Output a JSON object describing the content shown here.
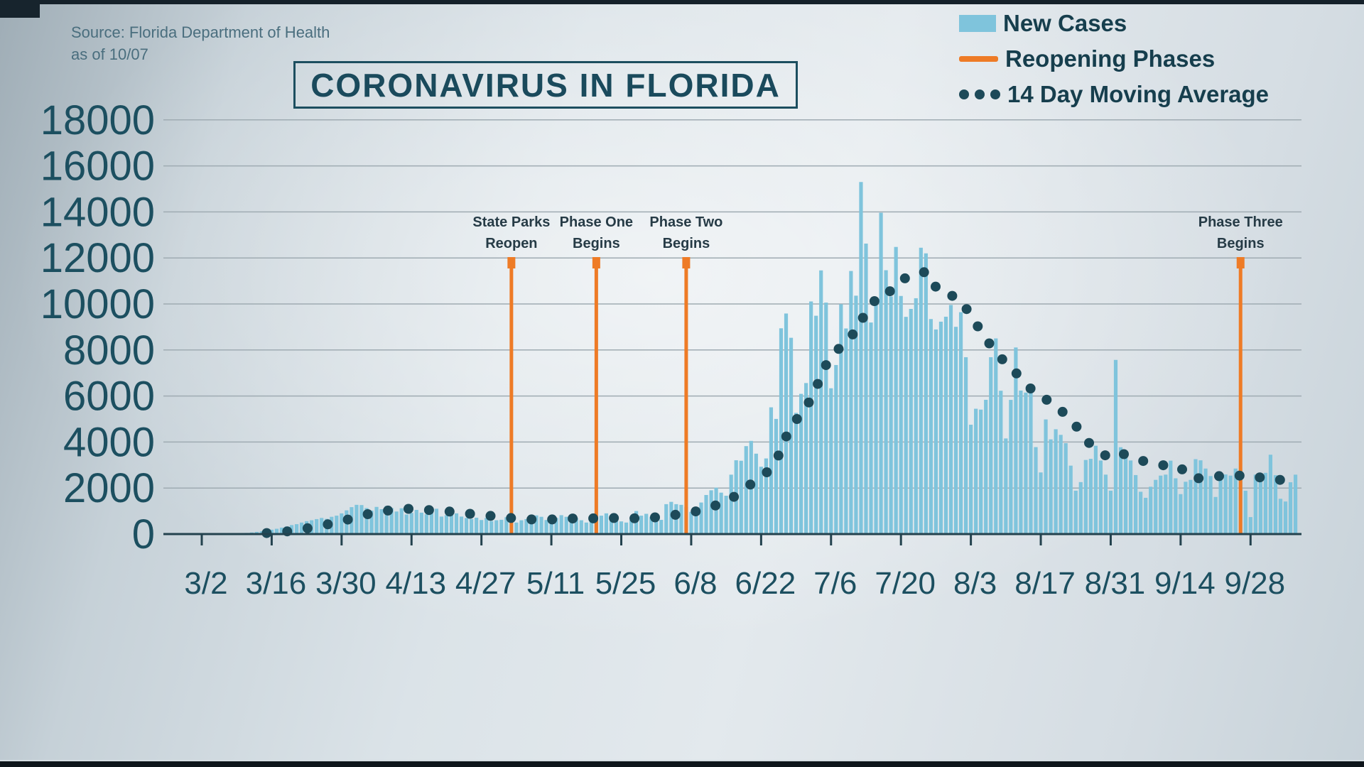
{
  "source_note": {
    "line1": "Source: Florida Department of Health",
    "line2": "as of 10/07"
  },
  "title": "CORONAVIRUS IN FLORIDA",
  "legend": {
    "items": [
      {
        "label": "New Cases",
        "swatch": "blue-bar"
      },
      {
        "label": "Reopening Phases",
        "swatch": "orange-line"
      },
      {
        "label": "14 Day Moving Average",
        "swatch": "dark-dots"
      }
    ]
  },
  "colors": {
    "bar": "#7fc4dc",
    "phase_line": "#ee7b26",
    "moving_avg": "#1d4a59",
    "axis_text": "#1c4f60",
    "grid_line": "#9fabb2",
    "axis_line": "#23424e",
    "title_text": "#1a4a5c",
    "annotation_text": "#263b46",
    "source_text": "#4a6e7e",
    "legend_text": "#163e4d"
  },
  "chart_data": {
    "type": "bar",
    "title": "CORONAVIRUS IN FLORIDA",
    "x_start_date": "3/2",
    "x_end_date": "10/7",
    "x_tick_labels": [
      "3/2",
      "3/16",
      "3/30",
      "4/13",
      "4/27",
      "5/11",
      "5/25",
      "6/8",
      "6/22",
      "7/6",
      "7/20",
      "8/3",
      "8/17",
      "8/31",
      "9/14",
      "9/28"
    ],
    "x_tick_day_indices": [
      0,
      14,
      28,
      42,
      56,
      70,
      84,
      98,
      112,
      126,
      140,
      154,
      168,
      182,
      196,
      210
    ],
    "ylim": [
      0,
      18000
    ],
    "y_ticks": [
      0,
      2000,
      4000,
      6000,
      8000,
      10000,
      12000,
      14000,
      16000,
      18000
    ],
    "grid": true,
    "legend_position": "top-right",
    "series": [
      {
        "name": "New Cases",
        "type": "bar",
        "values": [
          2,
          3,
          4,
          6,
          9,
          12,
          18,
          24,
          35,
          50,
          70,
          95,
          120,
          150,
          190,
          230,
          280,
          330,
          390,
          430,
          500,
          560,
          600,
          650,
          700,
          660,
          750,
          800,
          900,
          1030,
          1170,
          1270,
          1260,
          1130,
          1020,
          1180,
          1080,
          1220,
          1130,
          980,
          1120,
          850,
          920,
          1050,
          930,
          860,
          1000,
          1100,
          760,
          820,
          860,
          900,
          760,
          700,
          650,
          710,
          610,
          700,
          560,
          600,
          620,
          730,
          550,
          500,
          600,
          650,
          700,
          810,
          750,
          610,
          500,
          700,
          820,
          750,
          800,
          700,
          600,
          500,
          610,
          720,
          800,
          900,
          750,
          650,
          550,
          500,
          610,
          1000,
          800,
          880,
          750,
          667,
          617,
          1300,
          1400,
          1300,
          1270,
          1180,
          966,
          1096,
          1371,
          1698,
          1902,
          2016,
          1800,
          1666,
          2581,
          3207,
          3187,
          3822,
          4049,
          3494,
          2926,
          3286,
          5508,
          5004,
          8942,
          9585,
          8530,
          5266,
          6093,
          6563,
          10109,
          9488,
          11458,
          10059,
          6336,
          7347,
          9989,
          8935,
          11433,
          10360,
          15300,
          12624,
          9194,
          10181,
          13965,
          11466,
          10328,
          12478,
          10347,
          9440,
          9785,
          10249,
          12444,
          12199,
          9344,
          8892,
          9230,
          9446,
          9956,
          9007,
          9642,
          7686,
          4752,
          5446,
          5409,
          5834,
          7686,
          8502,
          6229,
          4155,
          5831,
          8109,
          6236,
          6148,
          6352,
          3779,
          2678,
          4982,
          4115,
          4555,
          4311,
          3950,
          2974,
          1885,
          2258,
          3220,
          3269,
          3838,
          3197,
          2583,
          1885,
          7569,
          3773,
          3542,
          3198,
          2564,
          1838,
          1576,
          2056,
          2355,
          2541,
          2583,
          3190,
          2423,
          1736,
          2273,
          2355,
          3255,
          3204,
          2847,
          2521,
          1612,
          2470,
          2590,
          2541,
          2847,
          2795,
          1882,
          738,
          2583,
          2628,
          2660,
          3449,
          2558,
          1533,
          1415,
          2251,
          2582
        ]
      },
      {
        "name": "14 Day Moving Average",
        "type": "dotted_line",
        "derivation": "trailing 14-day mean of New Cases values"
      }
    ],
    "reopening_phases": [
      {
        "label_line1": "State Parks",
        "label_line2": "Reopen",
        "day_index": 62
      },
      {
        "label_line1": "Phase One",
        "label_line2": "Begins",
        "day_index": 79
      },
      {
        "label_line1": "Phase Two",
        "label_line2": "Begins",
        "day_index": 97
      },
      {
        "label_line1": "Phase Three",
        "label_line2": "Begins",
        "day_index": 208
      }
    ]
  }
}
